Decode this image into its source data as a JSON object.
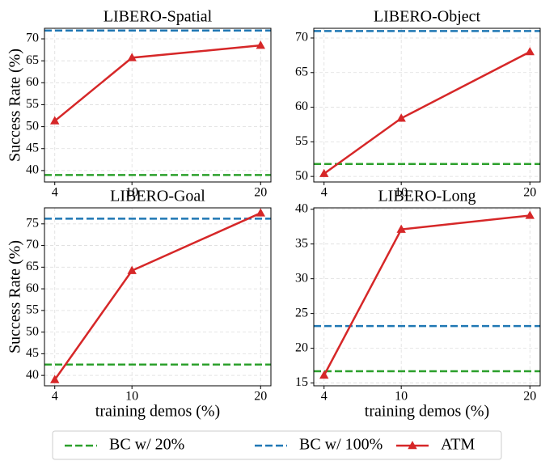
{
  "legend": {
    "position": "lower center",
    "items": [
      {
        "name": "BC w/ 20%",
        "color": "#2ca02c",
        "style": "dashed"
      },
      {
        "name": "BC w/ 100%",
        "color": "#1f77b4",
        "style": "dashed"
      },
      {
        "name": "ATM",
        "color": "#d62728",
        "style": "line-triangle"
      }
    ]
  },
  "chart_data": [
    {
      "type": "line",
      "title": "LIBERO-Spatial",
      "ylabel": "Success Rate (%)",
      "x": [
        4,
        10,
        20
      ],
      "values": [
        51.3,
        65.7,
        68.5
      ],
      "reference_lines": [
        39.0,
        71.9
      ],
      "xlim": [
        3.2,
        20.8
      ],
      "xticks": [
        4,
        10,
        20
      ],
      "ylim": [
        37.4,
        72.4
      ],
      "yticks": [
        40,
        45,
        50,
        55,
        60,
        65,
        70
      ],
      "grid": true
    },
    {
      "type": "line",
      "title": "LIBERO-Object",
      "x": [
        4,
        10,
        20
      ],
      "values": [
        50.4,
        58.4,
        68.0
      ],
      "reference_lines": [
        51.8,
        71.0
      ],
      "xlim": [
        3.2,
        20.8
      ],
      "xticks": [
        4,
        10,
        20
      ],
      "ylim": [
        49.2,
        71.4
      ],
      "yticks": [
        50,
        55,
        60,
        65,
        70
      ],
      "grid": true
    },
    {
      "type": "line",
      "title": "LIBERO-Goal",
      "ylabel": "Success Rate (%)",
      "xlabel": "training demos (%)",
      "x": [
        4,
        10,
        20
      ],
      "values": [
        39.0,
        64.2,
        77.5
      ],
      "reference_lines": [
        42.5,
        76.2
      ],
      "xlim": [
        3.2,
        20.8
      ],
      "xticks": [
        4,
        10,
        20
      ],
      "ylim": [
        37.6,
        78.7
      ],
      "yticks": [
        40,
        45,
        50,
        55,
        60,
        65,
        70,
        75
      ],
      "grid": true
    },
    {
      "type": "line",
      "title": "LIBERO-Long",
      "xlabel": "training demos (%)",
      "x": [
        4,
        10,
        20
      ],
      "values": [
        16.1,
        37.1,
        39.1
      ],
      "reference_lines": [
        16.7,
        23.2
      ],
      "xlim": [
        3.2,
        20.8
      ],
      "xticks": [
        4,
        10,
        20
      ],
      "ylim": [
        14.6,
        40.2
      ],
      "yticks": [
        15,
        20,
        25,
        30,
        35,
        40
      ],
      "grid": true
    }
  ]
}
